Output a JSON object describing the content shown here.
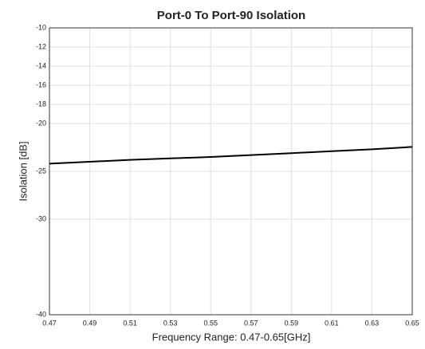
{
  "chart_data": {
    "type": "line",
    "title": "Port-0 To Port-90 Isolation",
    "xlabel": "Frequency Range: 0.47-0.65[GHz]",
    "ylabel": "Isolation [dB]",
    "x": [
      0.47,
      0.49,
      0.51,
      0.53,
      0.55,
      0.57,
      0.59,
      0.61,
      0.63,
      0.65
    ],
    "series": [
      {
        "name": "Isolation",
        "color": "#000000",
        "values": [
          -24.2,
          -24.0,
          -23.8,
          -23.65,
          -23.5,
          -23.3,
          -23.1,
          -22.9,
          -22.7,
          -22.45
        ]
      }
    ],
    "xlim": [
      0.47,
      0.65
    ],
    "xticks": [
      0.47,
      0.49,
      0.51,
      0.53,
      0.55,
      0.57,
      0.59,
      0.61,
      0.63,
      0.65
    ],
    "ylim": [
      -40,
      -10
    ],
    "yticks": [
      -40,
      -30,
      -25,
      -20,
      -18,
      -16,
      -14,
      -12,
      -10
    ],
    "grid": true
  }
}
